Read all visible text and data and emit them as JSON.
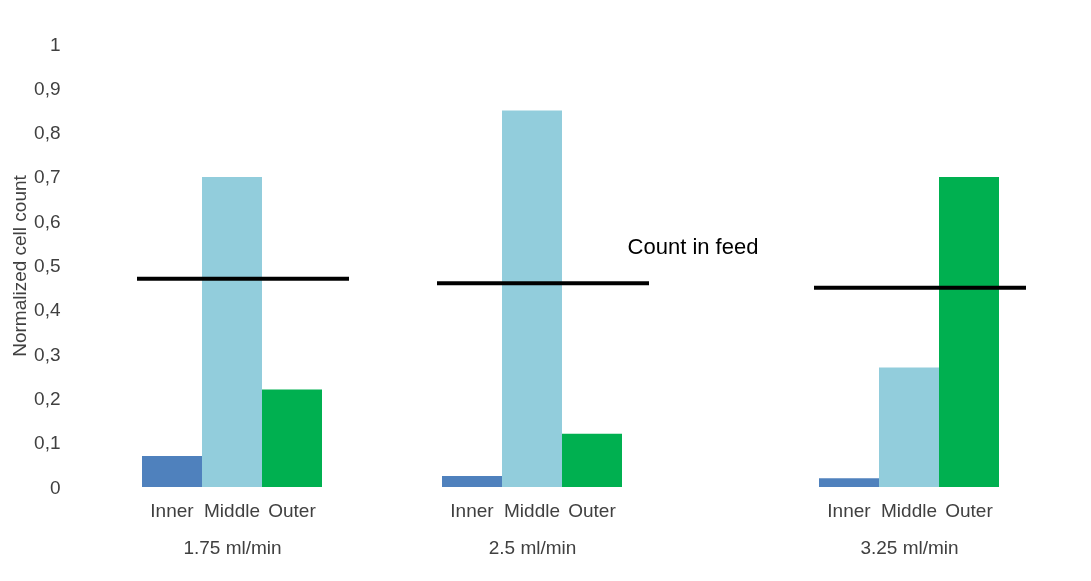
{
  "chart_data": [
    {
      "type": "bar",
      "categories": [
        "Inner",
        "Middle",
        "Outer"
      ],
      "values": [
        0.07,
        0.7,
        0.22
      ],
      "colors": [
        "#4f81bd",
        "#92cddc",
        "#00b050"
      ],
      "xlabel": "1.75 ml/min",
      "ylabel": "Normalized cell count",
      "ylim": [
        0,
        1
      ],
      "yticks": [
        0,
        {
          "value": 0.1,
          "label": "0,1"
        },
        {
          "value": 0.2,
          "label": "0,2"
        },
        {
          "value": 0.3,
          "label": "0,3"
        },
        {
          "value": 0.4,
          "label": "0,4"
        },
        {
          "value": 0.5,
          "label": "0,5"
        },
        {
          "value": 0.6,
          "label": "0,6"
        },
        {
          "value": 0.7,
          "label": "0,7"
        },
        {
          "value": 0.8,
          "label": "0,8"
        },
        {
          "value": 0.9,
          "label": "0,9"
        },
        1
      ],
      "ref_lines": [
        {
          "axis": "y",
          "value": 0.47,
          "color": "#000000"
        }
      ]
    },
    {
      "type": "bar",
      "categories": [
        "Inner",
        "Middle",
        "Outer"
      ],
      "values": [
        0.025,
        0.85,
        0.12
      ],
      "colors": [
        "#4f81bd",
        "#92cddc",
        "#00b050"
      ],
      "xlabel": "2.5 ml/min",
      "ylim": [
        0,
        1
      ],
      "tick_labels": "x",
      "ref_lines": [
        {
          "axis": "y",
          "value": 0.46,
          "color": "#000000",
          "label": "Count in feed"
        }
      ]
    },
    {
      "type": "bar",
      "categories": [
        "Inner",
        "Middle",
        "Outer"
      ],
      "values": [
        0.02,
        0.27,
        0.7
      ],
      "colors": [
        "#4f81bd",
        "#92cddc",
        "#00b050"
      ],
      "xlabel": "3.25 ml/min",
      "ylim": [
        0,
        1
      ],
      "tick_labels": "x",
      "ref_lines": [
        {
          "axis": "y",
          "value": 0.45,
          "color": "#000000"
        }
      ]
    }
  ]
}
